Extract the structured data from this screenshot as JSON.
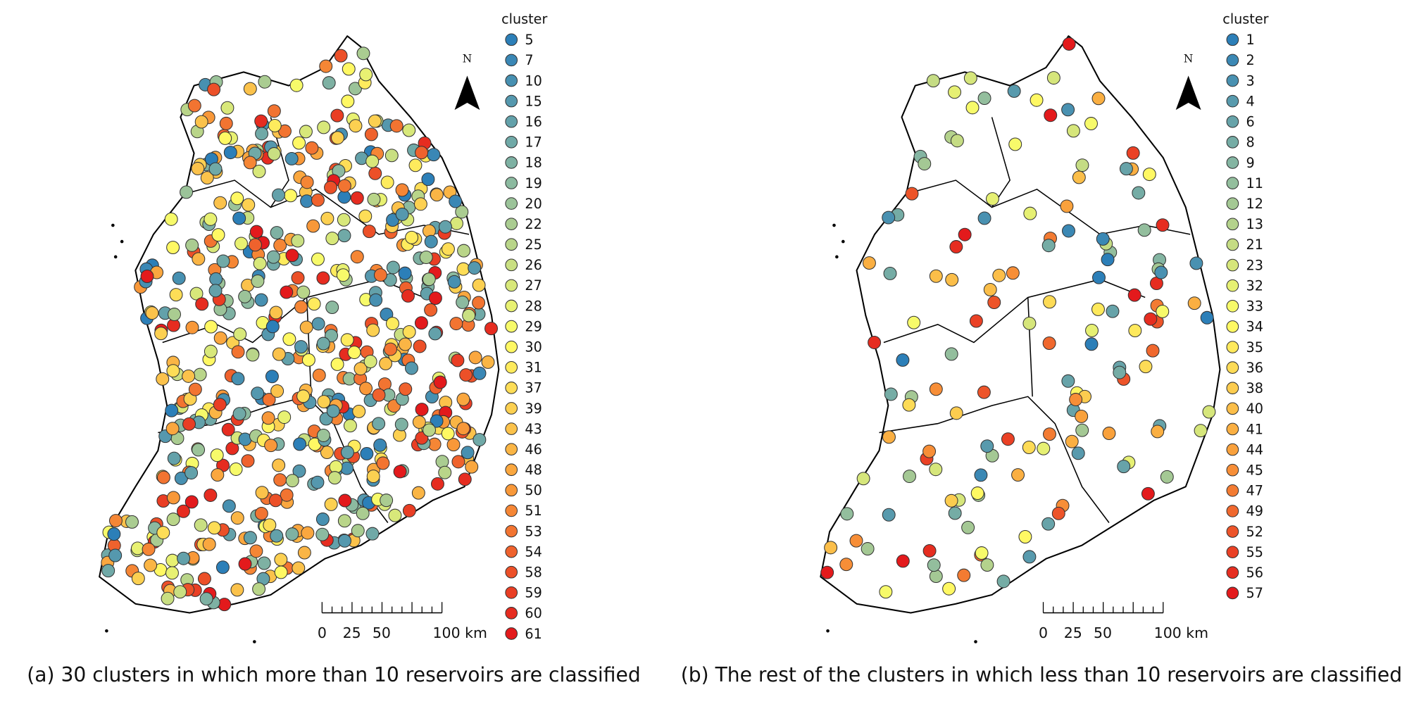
{
  "palette": [
    "#2c7fb8",
    "#8fbc9f",
    "#ffff66",
    "#f99d3a",
    "#e31a1c"
  ],
  "panels": [
    {
      "legend_title": "cluster",
      "legend": [
        "5",
        "7",
        "10",
        "15",
        "16",
        "17",
        "18",
        "19",
        "20",
        "22",
        "25",
        "26",
        "27",
        "28",
        "29",
        "30",
        "31",
        "37",
        "39",
        "43",
        "46",
        "48",
        "50",
        "51",
        "53",
        "54",
        "58",
        "59",
        "60",
        "61"
      ],
      "north": "N",
      "scale": [
        "0",
        "25",
        "50",
        "100 km"
      ],
      "caption": "(a) 30 clusters in which more than 10 reservoirs are classified"
    },
    {
      "legend_title": "cluster",
      "legend": [
        "1",
        "2",
        "3",
        "4",
        "6",
        "8",
        "9",
        "11",
        "12",
        "13",
        "21",
        "23",
        "32",
        "33",
        "34",
        "35",
        "36",
        "38",
        "40",
        "41",
        "44",
        "45",
        "47",
        "49",
        "52",
        "55",
        "56",
        "57"
      ],
      "north": "N",
      "scale": [
        "0",
        "25",
        "50",
        "100 km"
      ],
      "caption": "(b) The rest of the clusters in which less than 10 reservoirs are classified"
    }
  ]
}
